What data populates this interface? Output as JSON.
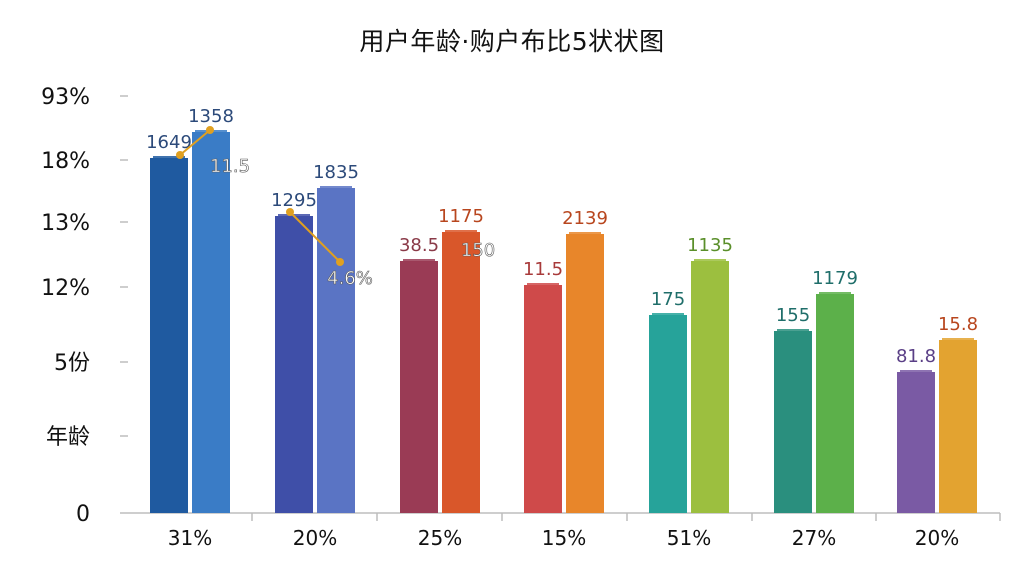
{
  "chart_data": {
    "type": "bar",
    "title": "用户年龄·购户布比5状状图",
    "y_tick_labels": [
      "93%",
      "18%",
      "13%",
      "12%",
      "5份",
      "年龄",
      "0"
    ],
    "categories": [
      "31%",
      "20%",
      "25%",
      "15%",
      "51%",
      "27%",
      "20%"
    ],
    "series": [
      {
        "values": [
          1649,
          1295,
          38.5,
          11.5,
          175,
          155,
          81.8
        ]
      },
      {
        "values": [
          1358,
          1835,
          1175,
          2139,
          1135,
          1179,
          15.8
        ]
      }
    ],
    "data_labels": [
      [
        "1649",
        "1358"
      ],
      [
        "1295",
        "1835"
      ],
      [
        "38.5",
        "1175"
      ],
      [
        "11.5",
        "2139"
      ],
      [
        "175",
        "1135"
      ],
      [
        "155",
        "1179"
      ],
      [
        "81.8",
        "15.8"
      ]
    ],
    "extra_labels": [
      "11.5",
      "4.6%",
      "150"
    ],
    "colors": {
      "group_1": [
        "#1f5aa0",
        "#3a7cc6"
      ],
      "group_2": [
        "#3f4fa8",
        "#5a74c4"
      ],
      "group_3": [
        "#9a3b55",
        "#d9572a"
      ],
      "group_4": [
        "#cf4a4a",
        "#e8862a"
      ],
      "group_5": [
        "#26a39a",
        "#9cbf3f"
      ],
      "group_6": [
        "#2a8f7e",
        "#5cb04a"
      ],
      "group_7": [
        "#7a5aa4",
        "#e3a330"
      ],
      "label_1": [
        "#2c4a7a",
        "#2c4a7a"
      ],
      "label_2": [
        "#2c4a7a",
        "#2c4a7a"
      ],
      "label_3": [
        "#8a3a48",
        "#b8461e"
      ],
      "label_4": [
        "#a83a3a",
        "#b8461e"
      ],
      "label_5": [
        "#1f6e6a",
        "#5a8f2a"
      ],
      "label_6": [
        "#1f6e6a",
        "#1f6e6a"
      ],
      "label_7": [
        "#5a3f86",
        "#b8461e"
      ],
      "connector": "#e0a020"
    },
    "grid": false,
    "legend": "none"
  }
}
